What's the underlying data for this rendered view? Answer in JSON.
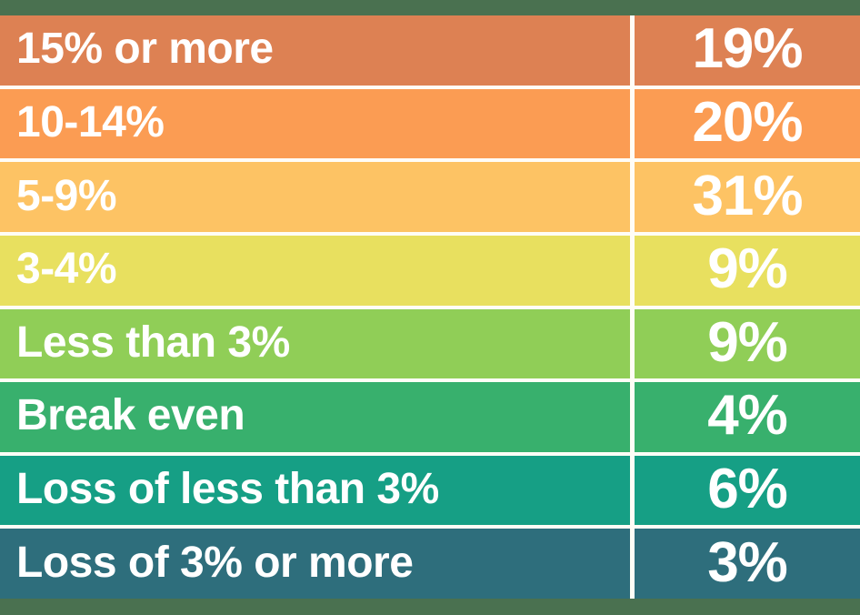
{
  "chart_data": {
    "type": "table",
    "title": "",
    "description": "Infographic table of margin ranges and percent of respondents",
    "rows": [
      {
        "label": "15% or more",
        "value": "19%",
        "numeric": 19,
        "color": "#dd8153"
      },
      {
        "label": "10-14%",
        "value": "20%",
        "numeric": 20,
        "color": "#fb9c53"
      },
      {
        "label": "5-9%",
        "value": "31%",
        "numeric": 31,
        "color": "#fdc364"
      },
      {
        "label": "3-4%",
        "value": "9%",
        "numeric": 9,
        "color": "#e8e05f"
      },
      {
        "label": "Less than 3%",
        "value": "9%",
        "numeric": 9,
        "color": "#90ce57"
      },
      {
        "label": "Break even",
        "value": "4%",
        "numeric": 4,
        "color": "#38b06d"
      },
      {
        "label": "Loss of less than 3%",
        "value": "6%",
        "numeric": 6,
        "color": "#169f85"
      },
      {
        "label": "Loss of 3% or more",
        "value": "3%",
        "numeric": 3,
        "color": "#2e6e7c"
      }
    ],
    "layout": {
      "legend": "none",
      "grid": "off",
      "band_color": "#4a7150",
      "gap_color": "#fffdf6",
      "divider_color": "#fffdf6",
      "text_color": "#ffffff"
    }
  }
}
